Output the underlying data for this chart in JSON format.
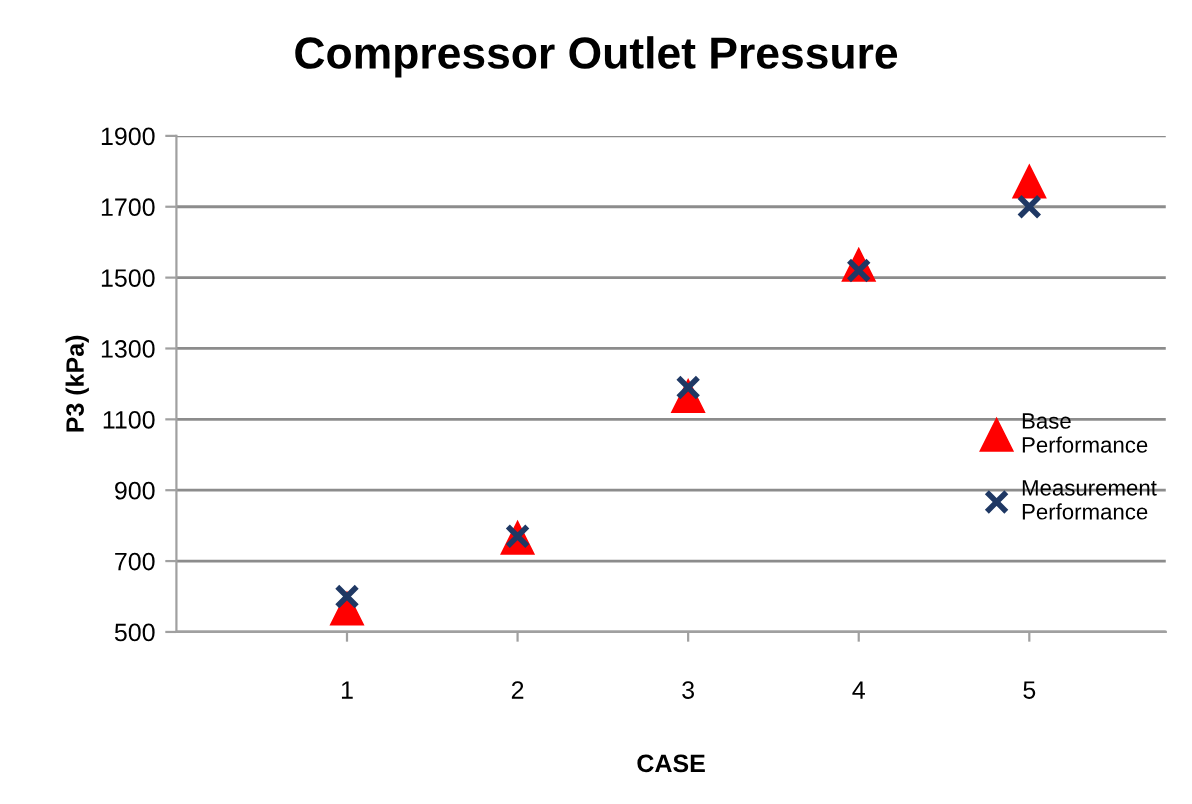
{
  "chart_data": {
    "type": "scatter",
    "title": "Compressor Outlet Pressure",
    "xlabel": "CASE",
    "ylabel": "P3 (kPa)",
    "categories": [
      "1",
      "2",
      "3",
      "4",
      "5"
    ],
    "series": [
      {
        "name": "Base Performance",
        "color": "#ff0000",
        "marker": "triangle",
        "values": [
          565,
          765,
          1165,
          1535,
          1770
        ]
      },
      {
        "name": "Measurement Performance",
        "color": "#1f3864",
        "marker": "cross",
        "values": [
          600,
          770,
          1190,
          1520,
          1700
        ]
      }
    ],
    "ylim": [
      500,
      1900
    ],
    "yticks": [
      500,
      700,
      900,
      1100,
      1300,
      1500,
      1700,
      1900
    ],
    "grid": "y",
    "legend": "right"
  }
}
